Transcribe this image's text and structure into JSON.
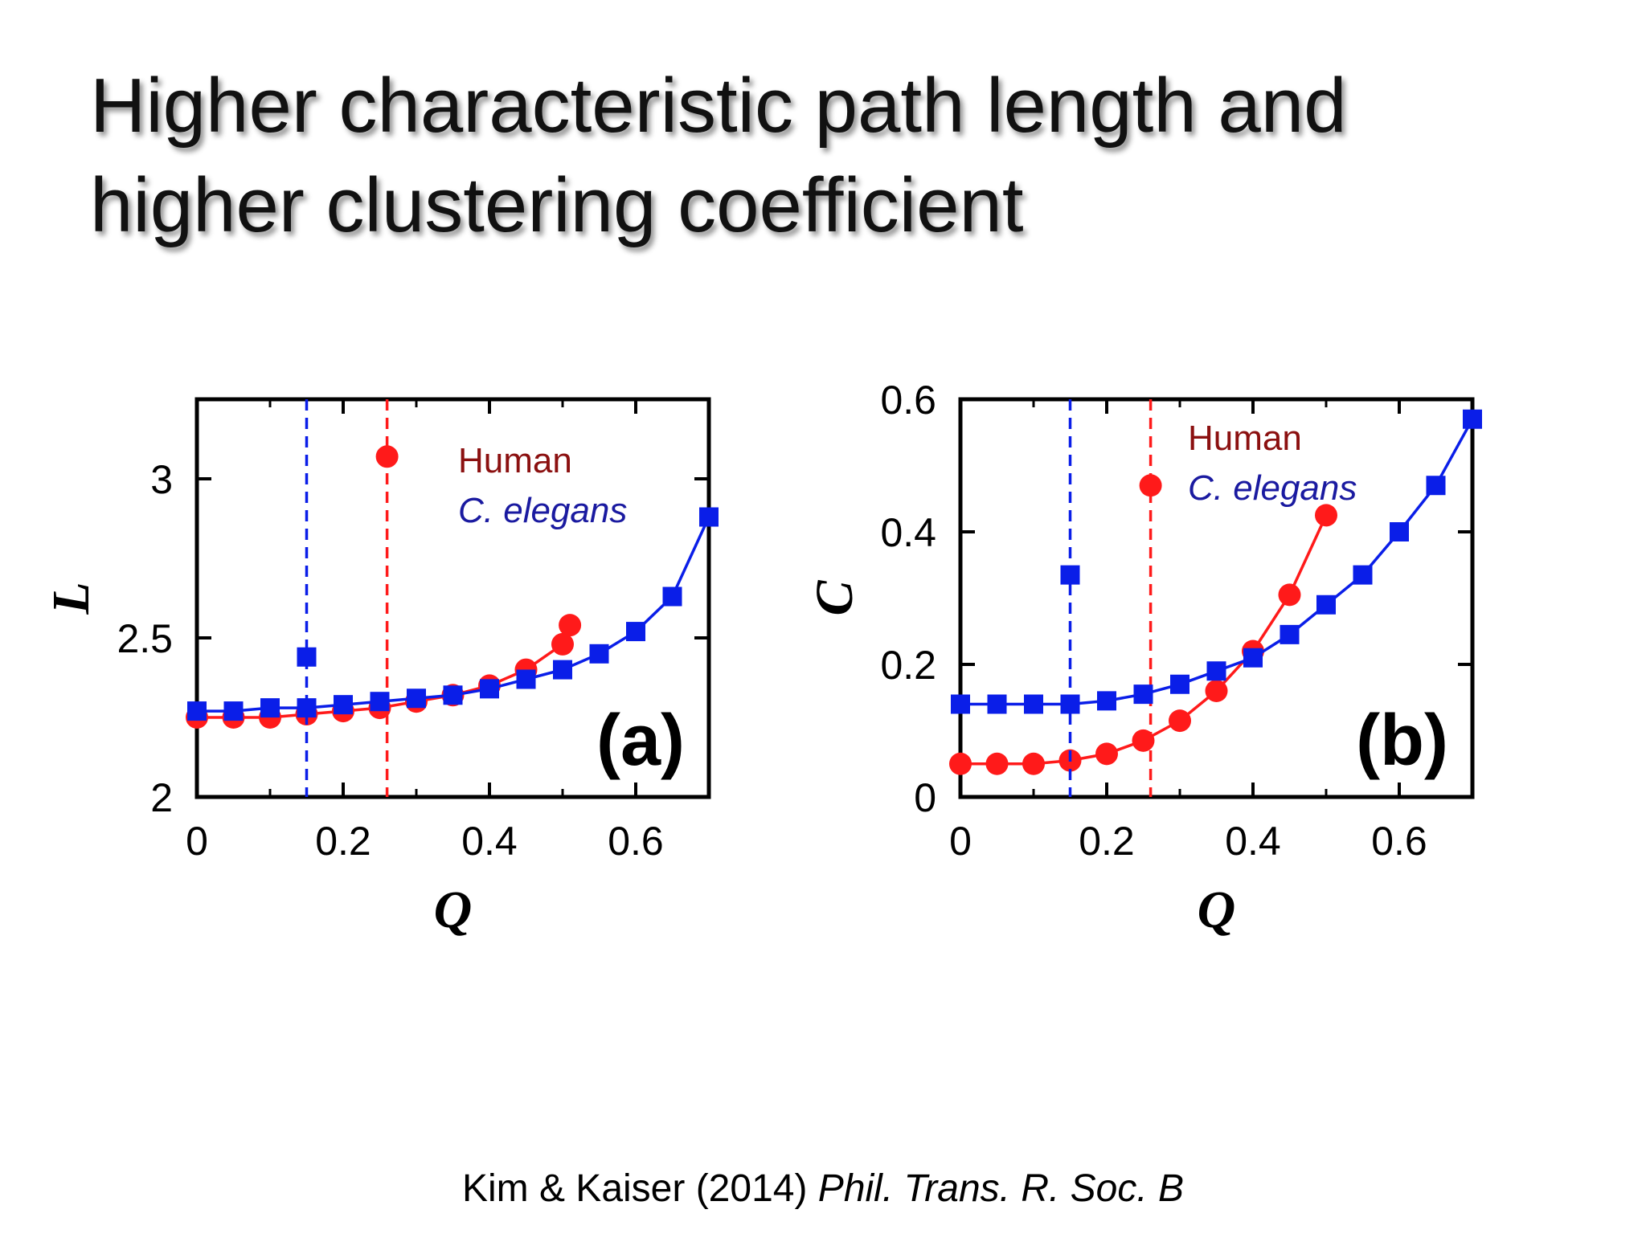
{
  "slide": {
    "title_lines": [
      "Higher characteristic path length and",
      "higher clustering coefficient"
    ],
    "citation": {
      "authors_year": "Kim & Kaiser (2014)",
      "journal": "Phil. Trans. R. Soc. B"
    }
  },
  "colors": {
    "human": "#ff1a1a",
    "human_legend": "#8b1010",
    "c_elegans": "#0a1ee8",
    "c_elegans_legend": "#1a1aa0"
  },
  "chart_data": [
    {
      "type": "line",
      "panel_label": "(a)",
      "xlabel": "Q",
      "ylabel": "L",
      "xlim": [
        0,
        0.7
      ],
      "ylim": [
        2,
        3.25
      ],
      "xticks": [
        0,
        0.2,
        0.4,
        0.6
      ],
      "xtick_labels": [
        "0",
        "0.2",
        "0.4",
        "0.6"
      ],
      "yticks": [
        2,
        2.5,
        3
      ],
      "ytick_labels": [
        "2",
        "2.5",
        "3"
      ],
      "legend_position": "top-right",
      "series": [
        {
          "name": "Human",
          "marker": "circle",
          "x": [
            0,
            0.05,
            0.1,
            0.15,
            0.2,
            0.25,
            0.3,
            0.35,
            0.4,
            0.45,
            0.5,
            0.51
          ],
          "y": [
            2.25,
            2.25,
            2.25,
            2.26,
            2.27,
            2.28,
            2.3,
            2.32,
            2.35,
            2.4,
            2.48,
            2.54
          ],
          "isolated_point": {
            "x": 0.26,
            "y": 3.07
          },
          "vline_x": 0.26
        },
        {
          "name": "C. elegans",
          "marker": "square",
          "x": [
            0,
            0.05,
            0.1,
            0.15,
            0.2,
            0.25,
            0.3,
            0.35,
            0.4,
            0.45,
            0.5,
            0.55,
            0.6,
            0.65,
            0.7
          ],
          "y": [
            2.27,
            2.27,
            2.28,
            2.28,
            2.29,
            2.3,
            2.31,
            2.32,
            2.34,
            2.37,
            2.4,
            2.45,
            2.52,
            2.63,
            2.88
          ],
          "isolated_point": {
            "x": 0.15,
            "y": 2.44
          },
          "vline_x": 0.15
        }
      ]
    },
    {
      "type": "line",
      "panel_label": "(b)",
      "xlabel": "Q",
      "ylabel": "C",
      "xlim": [
        0,
        0.7
      ],
      "ylim": [
        0,
        0.6
      ],
      "xticks": [
        0,
        0.2,
        0.4,
        0.6
      ],
      "xtick_labels": [
        "0",
        "0.2",
        "0.4",
        "0.6"
      ],
      "yticks": [
        0,
        0.2,
        0.4,
        0.6
      ],
      "ytick_labels": [
        "0",
        "0.2",
        "0.4",
        "0.6"
      ],
      "legend_position": "top-right",
      "series": [
        {
          "name": "Human",
          "marker": "circle",
          "x": [
            0,
            0.05,
            0.1,
            0.15,
            0.2,
            0.25,
            0.3,
            0.35,
            0.4,
            0.45,
            0.5
          ],
          "y": [
            0.05,
            0.05,
            0.05,
            0.055,
            0.065,
            0.085,
            0.115,
            0.16,
            0.22,
            0.305,
            0.425
          ],
          "isolated_point": {
            "x": 0.26,
            "y": 0.47
          },
          "vline_x": 0.26
        },
        {
          "name": "C. elegans",
          "marker": "square",
          "x": [
            0,
            0.05,
            0.1,
            0.15,
            0.2,
            0.25,
            0.3,
            0.35,
            0.4,
            0.45,
            0.5,
            0.55,
            0.6,
            0.65,
            0.7
          ],
          "y": [
            0.14,
            0.14,
            0.14,
            0.14,
            0.145,
            0.155,
            0.17,
            0.19,
            0.21,
            0.245,
            0.29,
            0.335,
            0.4,
            0.47,
            0.57
          ],
          "isolated_point": {
            "x": 0.15,
            "y": 0.335
          },
          "vline_x": 0.15
        }
      ]
    }
  ]
}
